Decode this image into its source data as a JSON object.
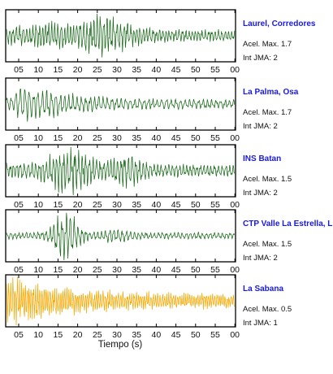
{
  "chart_data": {
    "type": "line",
    "xlabel": "Tiempo (s)",
    "x_ticks": [
      "05",
      "10",
      "15",
      "20",
      "25",
      "30",
      "35",
      "40",
      "45",
      "50",
      "55",
      "00"
    ],
    "accel_label": "Acel. Max.",
    "jma_label": "Int JMA:",
    "stations": [
      {
        "name": "Laurel, Corredores",
        "acel_max": "1.7",
        "int_jma": "2",
        "color": "#1a6b1a"
      },
      {
        "name": "La Palma, Osa",
        "acel_max": "1.7",
        "int_jma": "2",
        "color": "#1a6b1a"
      },
      {
        "name": "INS Batan",
        "acel_max": "1.5",
        "int_jma": "2",
        "color": "#1a6b1a"
      },
      {
        "name": "CTP Valle La Estrella, L",
        "acel_max": "1.5",
        "int_jma": "2",
        "color": "#1a6b1a"
      },
      {
        "name": "La Sabana",
        "acel_max": "0.5",
        "int_jma": "1",
        "color": "#f5a800"
      }
    ]
  }
}
